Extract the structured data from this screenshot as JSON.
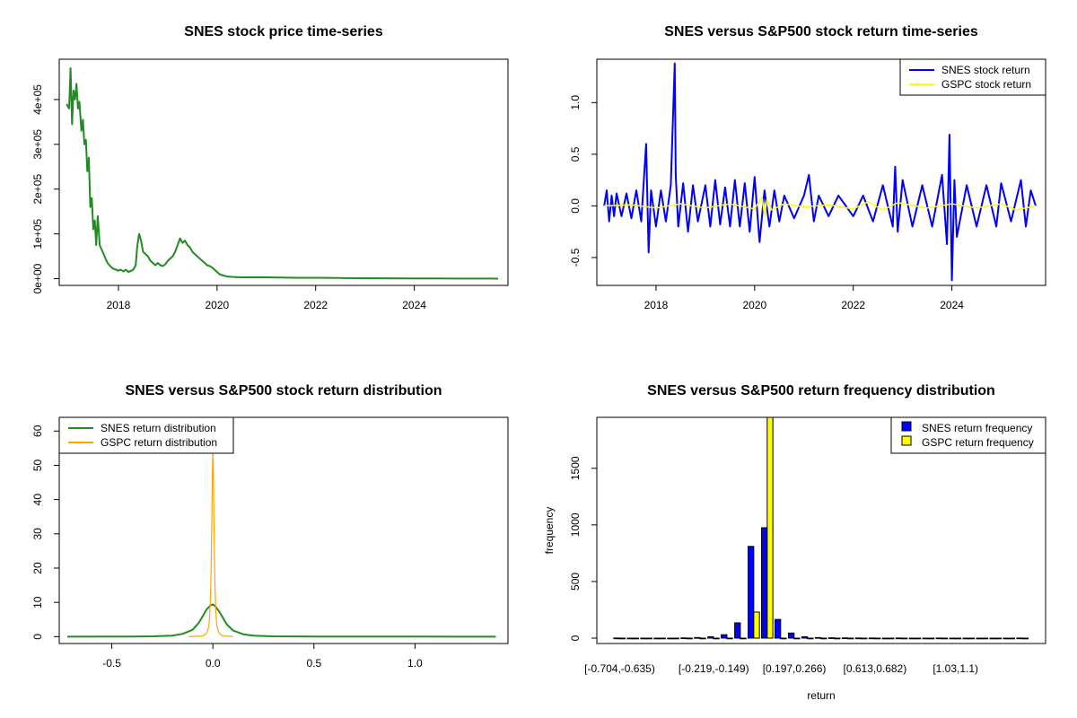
{
  "colors": {
    "snes_price": "#228B22",
    "snes_return": "#0000FF",
    "gspc_return": "#FFFF00",
    "snes_density": "#228B22",
    "gspc_density": "#FFA500",
    "snes_freq": "#0000FF",
    "gspc_freq": "#FFFF00"
  },
  "chart_data": [
    {
      "type": "line",
      "title": "SNES stock price time-series",
      "xlabel": "",
      "ylabel": "",
      "x_ticks": [
        "2018",
        "2020",
        "2022",
        "2024"
      ],
      "y_ticks": [
        "0e+00",
        "1e+05",
        "2e+05",
        "3e+05",
        "4e+05"
      ],
      "xlim": [
        2016.8,
        2025.9
      ],
      "ylim": [
        -15000,
        490000
      ],
      "grid": false,
      "series": [
        {
          "color": "snes_price",
          "x": [
            2016.95,
            2017.0,
            2017.03,
            2017.06,
            2017.09,
            2017.12,
            2017.15,
            2017.18,
            2017.21,
            2017.25,
            2017.28,
            2017.31,
            2017.34,
            2017.37,
            2017.4,
            2017.43,
            2017.46,
            2017.49,
            2017.52,
            2017.55,
            2017.58,
            2017.62,
            2017.66,
            2017.7,
            2017.74,
            2017.78,
            2017.82,
            2017.86,
            2017.9,
            2017.95,
            2018.0,
            2018.05,
            2018.1,
            2018.15,
            2018.2,
            2018.25,
            2018.3,
            2018.35,
            2018.38,
            2018.42,
            2018.46,
            2018.5,
            2018.55,
            2018.6,
            2018.65,
            2018.7,
            2018.75,
            2018.8,
            2018.85,
            2018.9,
            2018.95,
            2019.0,
            2019.05,
            2019.1,
            2019.15,
            2019.2,
            2019.25,
            2019.3,
            2019.35,
            2019.4,
            2019.45,
            2019.5,
            2019.55,
            2019.6,
            2019.65,
            2019.7,
            2019.75,
            2019.8,
            2019.85,
            2019.9,
            2019.95,
            2020.0,
            2020.05,
            2020.1,
            2020.2,
            2020.3,
            2020.5,
            2020.7,
            2021.0,
            2021.3,
            2021.6,
            2022.0,
            2022.5,
            2023.0,
            2023.5,
            2024.0,
            2024.5,
            2025.0,
            2025.5,
            2025.7
          ],
          "y": [
            390000,
            380000,
            470000,
            345000,
            420000,
            400000,
            435000,
            380000,
            395000,
            330000,
            355000,
            300000,
            310000,
            240000,
            270000,
            160000,
            180000,
            110000,
            130000,
            75000,
            140000,
            75000,
            65000,
            55000,
            45000,
            35000,
            30000,
            25000,
            22000,
            20000,
            18000,
            20000,
            16000,
            20000,
            15000,
            17000,
            20000,
            30000,
            70000,
            100000,
            85000,
            60000,
            55000,
            50000,
            40000,
            35000,
            30000,
            35000,
            30000,
            28000,
            32000,
            40000,
            45000,
            50000,
            60000,
            75000,
            90000,
            80000,
            85000,
            75000,
            70000,
            60000,
            55000,
            50000,
            45000,
            40000,
            35000,
            30000,
            28000,
            25000,
            20000,
            15000,
            10000,
            8000,
            5000,
            4000,
            3000,
            3000,
            3000,
            2500,
            2000,
            2000,
            1500,
            1000,
            800,
            700,
            500,
            300,
            200,
            100
          ]
        }
      ]
    },
    {
      "type": "line",
      "title": "SNES versus S&P500 stock return time-series",
      "xlabel": "",
      "ylabel": "",
      "x_ticks": [
        "2018",
        "2020",
        "2022",
        "2024"
      ],
      "y_ticks": [
        "-0.5",
        "0.0",
        "0.5",
        "1.0"
      ],
      "xlim": [
        2016.8,
        2025.9
      ],
      "ylim": [
        -0.77,
        1.42
      ],
      "legend_position": "top-right",
      "series": [
        {
          "name": "SNES stock return",
          "color": "snes_return",
          "x": [
            2016.95,
            2017.0,
            2017.05,
            2017.1,
            2017.15,
            2017.2,
            2017.3,
            2017.4,
            2017.5,
            2017.6,
            2017.7,
            2017.8,
            2017.85,
            2017.9,
            2018.0,
            2018.1,
            2018.2,
            2018.3,
            2018.38,
            2018.4,
            2018.45,
            2018.55,
            2018.65,
            2018.75,
            2018.85,
            2019.0,
            2019.1,
            2019.2,
            2019.3,
            2019.4,
            2019.5,
            2019.6,
            2019.7,
            2019.8,
            2019.9,
            2020.0,
            2020.1,
            2020.2,
            2020.3,
            2020.4,
            2020.5,
            2020.6,
            2020.8,
            2021.0,
            2021.1,
            2021.2,
            2021.3,
            2021.5,
            2021.7,
            2022.0,
            2022.2,
            2022.4,
            2022.6,
            2022.8,
            2022.85,
            2022.9,
            2023.0,
            2023.2,
            2023.4,
            2023.6,
            2023.8,
            2023.9,
            2023.95,
            2024.0,
            2024.05,
            2024.1,
            2024.3,
            2024.5,
            2024.7,
            2024.9,
            2025.0,
            2025.2,
            2025.4,
            2025.5,
            2025.6,
            2025.7
          ],
          "y": [
            0.0,
            0.15,
            -0.15,
            0.1,
            -0.1,
            0.12,
            -0.1,
            0.12,
            -0.12,
            0.15,
            -0.15,
            0.6,
            -0.45,
            0.15,
            -0.2,
            0.15,
            -0.15,
            0.2,
            1.38,
            0.3,
            -0.2,
            0.22,
            -0.25,
            0.2,
            -0.15,
            0.2,
            -0.2,
            0.25,
            -0.18,
            0.18,
            -0.2,
            0.25,
            -0.2,
            0.22,
            -0.25,
            0.28,
            -0.35,
            0.15,
            -0.2,
            0.15,
            -0.15,
            0.1,
            -0.12,
            0.1,
            0.3,
            -0.15,
            0.1,
            -0.1,
            0.1,
            -0.1,
            0.1,
            -0.15,
            0.2,
            -0.2,
            0.38,
            -0.25,
            0.25,
            -0.2,
            0.2,
            -0.2,
            0.3,
            -0.37,
            0.69,
            -0.72,
            0.25,
            -0.3,
            0.2,
            -0.2,
            0.2,
            -0.2,
            0.22,
            -0.15,
            0.25,
            -0.2,
            0.15,
            0.0
          ]
        },
        {
          "name": "GSPC stock return",
          "color": "gspc_return",
          "x": [
            2016.95,
            2017.5,
            2018.0,
            2018.5,
            2019.0,
            2019.5,
            2020.0,
            2020.15,
            2020.2,
            2020.25,
            2020.35,
            2020.6,
            2021.0,
            2021.5,
            2022.0,
            2022.3,
            2022.6,
            2022.9,
            2023.5,
            2024.0,
            2024.5,
            2025.0,
            2025.3,
            2025.7
          ],
          "y": [
            0.0,
            0.01,
            -0.02,
            0.02,
            -0.02,
            0.02,
            -0.03,
            0.09,
            -0.1,
            0.06,
            -0.04,
            0.02,
            -0.01,
            0.01,
            -0.03,
            0.04,
            -0.04,
            0.03,
            -0.02,
            0.02,
            -0.02,
            0.02,
            -0.04,
            0.0
          ]
        }
      ]
    },
    {
      "type": "line",
      "title": "SNES versus S&P500 stock return distribution",
      "xlabel": "",
      "ylabel": "",
      "x_ticks": [
        "-0.5",
        "0.0",
        "0.5",
        "1.0"
      ],
      "y_ticks": [
        "0",
        "10",
        "20",
        "30",
        "40",
        "50",
        "60"
      ],
      "xlim": [
        -0.76,
        1.46
      ],
      "ylim": [
        -2,
        64
      ],
      "legend_position": "top-left",
      "series": [
        {
          "name": "SNES return distribution",
          "color": "snes_density",
          "x": [
            -0.72,
            -0.5,
            -0.4,
            -0.3,
            -0.2,
            -0.15,
            -0.1,
            -0.07,
            -0.05,
            -0.03,
            -0.01,
            0.0,
            0.01,
            0.03,
            0.05,
            0.07,
            0.1,
            0.15,
            0.2,
            0.3,
            0.5,
            1.0,
            1.4
          ],
          "y": [
            0.0,
            0.01,
            0.05,
            0.1,
            0.3,
            0.8,
            2.0,
            4.0,
            6.0,
            8.0,
            9.2,
            9.4,
            9.0,
            7.5,
            5.5,
            3.5,
            1.8,
            0.7,
            0.3,
            0.1,
            0.02,
            0.01,
            0.0
          ]
        },
        {
          "name": "GSPC return distribution",
          "color": "gspc_density",
          "x": [
            -0.12,
            -0.05,
            -0.03,
            -0.02,
            -0.015,
            -0.01,
            -0.005,
            -0.002,
            0.0,
            0.002,
            0.005,
            0.01,
            0.015,
            0.02,
            0.03,
            0.05,
            0.1
          ],
          "y": [
            0.0,
            0.2,
            1.0,
            3.0,
            7.0,
            15.0,
            33.0,
            49.0,
            54.0,
            50.0,
            35.0,
            16.0,
            7.0,
            3.0,
            1.0,
            0.2,
            0.0
          ]
        }
      ]
    },
    {
      "type": "bar",
      "title": "SNES versus S&P500 return frequency distribution",
      "xlabel": "return",
      "ylabel": "frequency",
      "x_tick_labels": [
        "[-0.704,-0.635)",
        "[-0.219,-0.149)",
        "[0.197,0.266)",
        "[0.613,0.682)",
        "[1.03,1.1)"
      ],
      "x_tick_positions": [
        0,
        7,
        13,
        19,
        25
      ],
      "y_ticks": [
        "0",
        "500",
        "1000",
        "1500"
      ],
      "ylim": [
        0,
        1950
      ],
      "legend_position": "top-right",
      "categories_count": 31,
      "series": [
        {
          "name": "SNES return frequency",
          "color": "snes_freq",
          "values": [
            1,
            0,
            0,
            0,
            0,
            2,
            5,
            12,
            30,
            135,
            810,
            975,
            165,
            45,
            12,
            5,
            3,
            2,
            1,
            1,
            0,
            1,
            0,
            0,
            1,
            0,
            0,
            0,
            0,
            0,
            1
          ]
        },
        {
          "name": "GSPC return frequency",
          "color": "gspc_freq",
          "values": [
            0,
            0,
            0,
            0,
            0,
            0,
            0,
            0,
            0,
            0,
            230,
            1950,
            0,
            0,
            0,
            0,
            0,
            0,
            0,
            0,
            0,
            0,
            0,
            0,
            0,
            0,
            0,
            0,
            0,
            0,
            0
          ]
        }
      ]
    }
  ]
}
